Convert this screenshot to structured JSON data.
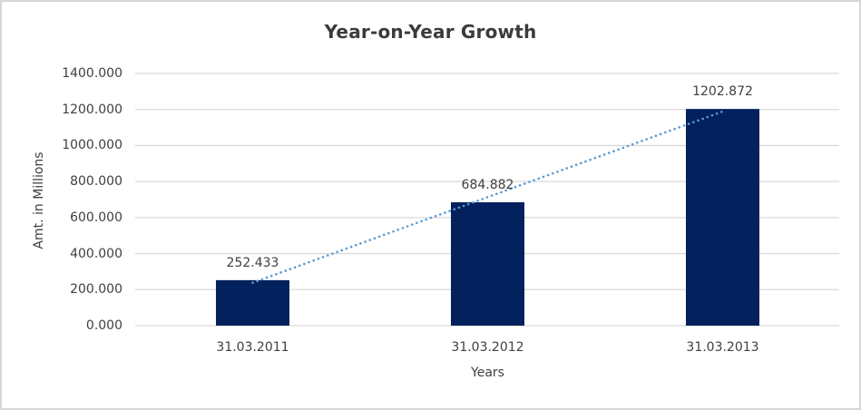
{
  "chart_data": {
    "type": "bar",
    "title": "Year-on-Year Growth",
    "xlabel": "Years",
    "ylabel": "Amt. in Millions",
    "categories": [
      "31.03.2011",
      "31.03.2012",
      "31.03.2013"
    ],
    "values": [
      252.433,
      684.882,
      1202.872
    ],
    "value_labels": [
      "252.433",
      "684.882",
      "1202.872"
    ],
    "ytick_values": [
      0,
      200,
      400,
      600,
      800,
      1000,
      1200,
      1400
    ],
    "ytick_labels": [
      "0.000",
      "200.000",
      "400.000",
      "600.000",
      "800.000",
      "1000.000",
      "1200.000",
      "1400.000"
    ],
    "ylim": [
      0,
      1400
    ],
    "grid": true,
    "legend": "none",
    "trendline": {
      "type": "linear",
      "style": "dotted"
    },
    "colors": {
      "bar": "#03215C",
      "trendline": "#5B9BD5",
      "gridline": "#D9D9D9",
      "text": "#404040",
      "title_text": "#3B3B3B",
      "border": "#D6D6D6",
      "background": "#FFFFFF"
    }
  }
}
